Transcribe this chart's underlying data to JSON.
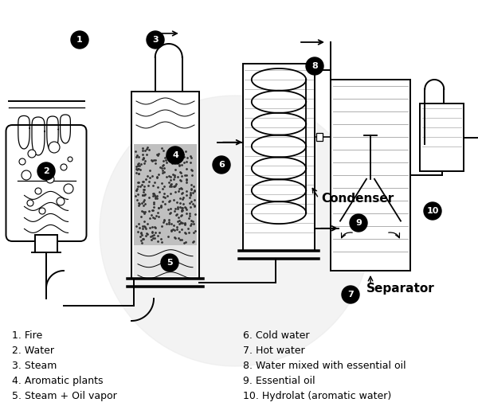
{
  "background_color": "#ffffff",
  "legend_items": [
    "1. Fire",
    "2. Water",
    "3. Steam",
    "4. Aromatic plants",
    "5. Steam + Oil vapor",
    "6. Cold water",
    "7. Hot water",
    "8. Water mixed with essential oil",
    "9. Essential oil",
    "10. Hydrolat (aromatic water)"
  ],
  "label_condenser": "Condenser",
  "label_separator": "Separator",
  "figsize": [
    6.0,
    5.2
  ],
  "dpi": 100
}
